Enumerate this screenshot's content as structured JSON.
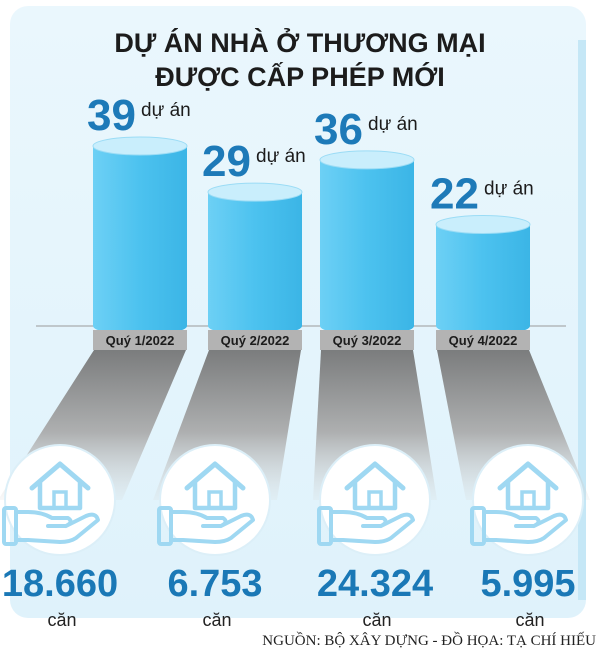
{
  "title_line1": "DỰ ÁN NHÀ Ở THƯƠNG MẠI",
  "title_line2": "ĐƯỢC CẤP PHÉP MỚI",
  "source": "NGUỒN: BỘ XÂY DỰNG - ĐỒ HỌA: TẠ CHÍ HIẾU",
  "icon": "house-in-hand-icon",
  "colors": {
    "bar_top": "#c7ecfb",
    "bar_body": "#4fc4f0",
    "value_text": "#1d7ab8",
    "panel": "#e9f6fc",
    "label_bar": "#b3b3b3"
  },
  "chart_data": {
    "type": "bar",
    "title": "DỰ ÁN NHÀ Ở THƯƠNG MẠI ĐƯỢC CẤP PHÉP MỚI",
    "categories": [
      "Quý 1/2022",
      "Quý 2/2022",
      "Quý 3/2022",
      "Quý 4/2022"
    ],
    "value_unit": "dự án",
    "series": [
      {
        "values": [
          39,
          29,
          36,
          22
        ]
      }
    ],
    "values_display": [
      "39",
      "29",
      "36",
      "22"
    ],
    "housing_units": [
      18660,
      6753,
      24324,
      5995
    ],
    "housing_units_display": [
      "18.660",
      "6.753",
      "24.324",
      "5.995"
    ],
    "housing_unit_label": "căn",
    "xlabel": "",
    "ylabel": "",
    "ylim": [
      0,
      39
    ],
    "grid": false,
    "legend": "none"
  }
}
